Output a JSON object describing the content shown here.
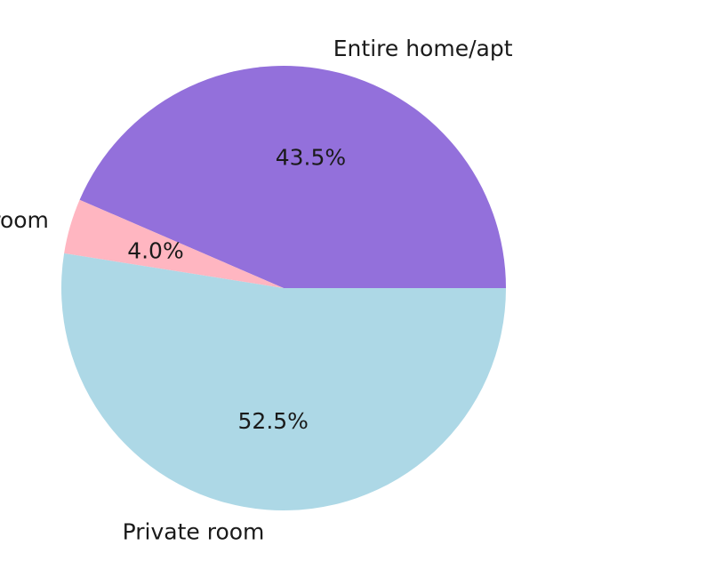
{
  "chart_data": {
    "type": "pie",
    "categories": [
      "Entire home/apt",
      "Shared room",
      "Private room"
    ],
    "values": [
      43.5,
      4.0,
      52.5
    ],
    "percent_labels": [
      "43.5%",
      "4.0%",
      "52.5%"
    ],
    "colors": [
      "#9370DB",
      "#FFB6C1",
      "#ADD8E6"
    ],
    "start_angle_deg": 0,
    "direction": "counterclockwise",
    "legend": "none"
  }
}
